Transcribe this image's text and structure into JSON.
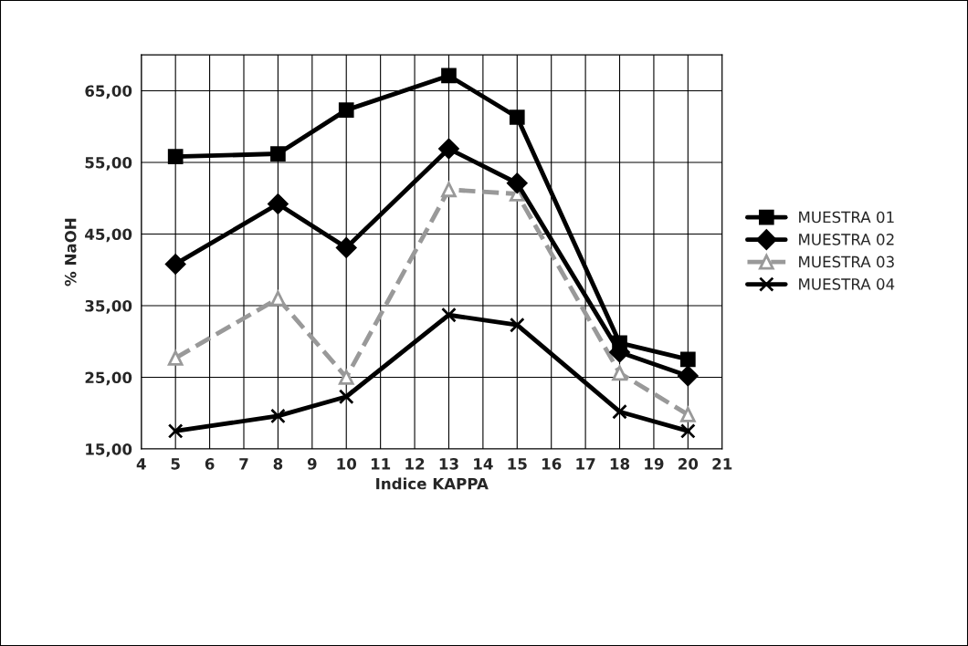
{
  "chart_data": {
    "type": "line",
    "xlabel": "Indice KAPPA",
    "ylabel": "% NaOH",
    "x": [
      5,
      8,
      10,
      13,
      15,
      18,
      20
    ],
    "series": [
      {
        "name": "MUESTRA 01",
        "color": "#000000",
        "marker": "square",
        "line_style": "solid",
        "values": [
          55.8,
          56.2,
          62.3,
          67.1,
          61.3,
          29.8,
          27.5
        ]
      },
      {
        "name": "MUESTRA 02",
        "color": "#000000",
        "marker": "diamond",
        "line_style": "solid",
        "values": [
          40.8,
          49.2,
          43.1,
          56.9,
          52.1,
          28.5,
          25.2
        ]
      },
      {
        "name": "MUESTRA 03",
        "color": "#999999",
        "marker": "triangle",
        "line_style": "dashed",
        "values": [
          27.7,
          36.0,
          25.0,
          51.2,
          50.6,
          25.6,
          19.8
        ]
      },
      {
        "name": "MUESTRA 04",
        "color": "#000000",
        "marker": "cross",
        "line_style": "solid",
        "values": [
          17.5,
          19.6,
          22.3,
          33.7,
          32.3,
          20.2,
          17.5
        ]
      }
    ],
    "xlim": [
      4,
      21
    ],
    "xticks": [
      4,
      5,
      6,
      7,
      8,
      9,
      10,
      11,
      12,
      13,
      14,
      15,
      16,
      17,
      18,
      19,
      20,
      21
    ],
    "ylim": [
      15,
      70
    ],
    "yticks": [
      {
        "value": 15,
        "label": "15,00"
      },
      {
        "value": 25,
        "label": "25,00"
      },
      {
        "value": 35,
        "label": "35,00"
      },
      {
        "value": 45,
        "label": "45,00"
      },
      {
        "value": 55,
        "label": "55,00"
      },
      {
        "value": 65,
        "label": "65,00"
      }
    ],
    "grid": true,
    "legend": "right"
  }
}
